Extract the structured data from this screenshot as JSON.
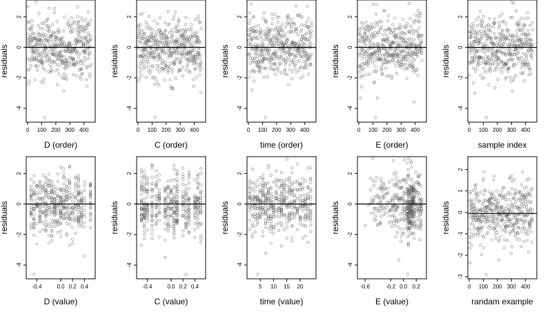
{
  "chart_data": [
    {
      "type": "scatter",
      "xlabel": "D (order)",
      "ylabel": "residuals",
      "xticks": [
        "0",
        "100",
        "200",
        "300",
        "400"
      ],
      "yticks": [
        "-4",
        "-2",
        "0",
        "2"
      ],
      "xlim": [
        -10,
        480
      ],
      "ylim": [
        -4.9,
        3.1
      ],
      "hline": 0,
      "n": 450,
      "seed": 11,
      "x_mode": "index",
      "x_values": [],
      "y_min_outlier": -4.6
    },
    {
      "type": "scatter",
      "xlabel": "C (order)",
      "ylabel": "residuals",
      "xticks": [
        "0",
        "100",
        "200",
        "300",
        "400"
      ],
      "yticks": [
        "-4",
        "-2",
        "0",
        "2"
      ],
      "xlim": [
        -10,
        480
      ],
      "ylim": [
        -4.9,
        3.1
      ],
      "hline": 0,
      "n": 450,
      "seed": 12,
      "x_mode": "index",
      "x_values": [],
      "y_min_outlier": -4.6
    },
    {
      "type": "scatter",
      "xlabel": "time (order)",
      "ylabel": "residuals",
      "xticks": [
        "0",
        "100",
        "200",
        "300",
        "400"
      ],
      "yticks": [
        "-4",
        "-2",
        "0",
        "2"
      ],
      "xlim": [
        -10,
        480
      ],
      "ylim": [
        -4.9,
        3.1
      ],
      "hline": 0,
      "n": 450,
      "seed": 13,
      "x_mode": "index",
      "x_values": [],
      "y_min_outlier": -4.6
    },
    {
      "type": "scatter",
      "xlabel": "E (order)",
      "ylabel": "residuals",
      "xticks": [
        "0",
        "100",
        "200",
        "300",
        "400"
      ],
      "yticks": [
        "-4",
        "-2",
        "0",
        "2"
      ],
      "xlim": [
        -10,
        480
      ],
      "ylim": [
        -4.9,
        3.1
      ],
      "hline": 0,
      "n": 450,
      "seed": 14,
      "x_mode": "index",
      "x_values": [],
      "y_min_outlier": -4.6
    },
    {
      "type": "scatter",
      "xlabel": "sample index",
      "ylabel": "residuals",
      "xticks": [
        "0",
        "100",
        "200",
        "300",
        "400"
      ],
      "yticks": [
        "-4",
        "-2",
        "0",
        "2"
      ],
      "xlim": [
        -10,
        480
      ],
      "ylim": [
        -4.9,
        3.1
      ],
      "hline": 0,
      "n": 450,
      "seed": 15,
      "x_mode": "index",
      "x_values": [],
      "y_min_outlier": -4.6
    },
    {
      "type": "scatter",
      "xlabel": "D (value)",
      "ylabel": "residuals",
      "xticks": [
        "-0.4",
        "0.0",
        "0.2",
        "0.4"
      ],
      "yticks": [
        "-4",
        "-2",
        "0",
        "2"
      ],
      "xlim": [
        -0.58,
        0.58
      ],
      "ylim": [
        -4.9,
        3.1
      ],
      "hline": 0,
      "n": 450,
      "seed": 21,
      "x_mode": "discrete",
      "x_values": [
        -0.5,
        -0.45,
        -0.4,
        -0.35,
        -0.3,
        -0.25,
        -0.2,
        -0.15,
        -0.1,
        -0.05,
        0.0,
        0.05,
        0.1,
        0.15,
        0.2,
        0.25,
        0.3,
        0.35,
        0.4,
        0.5
      ],
      "y_min_outlier": -4.6
    },
    {
      "type": "scatter",
      "xlabel": "C (value)",
      "ylabel": "residuals",
      "xticks": [
        "-0.4",
        "0.0",
        "0.2",
        "0.4"
      ],
      "yticks": [
        "-4",
        "-2",
        "0",
        "2"
      ],
      "xlim": [
        -0.58,
        0.58
      ],
      "ylim": [
        -4.9,
        3.1
      ],
      "hline": 0,
      "n": 450,
      "seed": 22,
      "x_mode": "discrete",
      "x_values": [
        -0.5,
        -0.45,
        -0.4,
        -0.32,
        -0.25,
        -0.2,
        -0.1,
        -0.05,
        0.0,
        0.05,
        0.1,
        0.2,
        0.25,
        0.3,
        0.4,
        0.45,
        0.5
      ],
      "y_min_outlier": -4.6
    },
    {
      "type": "scatter",
      "xlabel": "time (value)",
      "ylabel": "residuals",
      "xticks": [
        "5",
        "10",
        "15",
        "20"
      ],
      "yticks": [
        "-4",
        "-2",
        "0",
        "2"
      ],
      "xlim": [
        0,
        26
      ],
      "ylim": [
        -4.9,
        3.1
      ],
      "hline": 0,
      "n": 450,
      "seed": 23,
      "x_mode": "discrete",
      "x_values": [
        1,
        2,
        3,
        4,
        5,
        6,
        7,
        8,
        9,
        10,
        11,
        12,
        13,
        14,
        15,
        16,
        17,
        18,
        19,
        20,
        21,
        22,
        23,
        24
      ],
      "y_min_outlier": -4.6
    },
    {
      "type": "scatter",
      "xlabel": "E (value)",
      "ylabel": "residuals",
      "xticks": [
        "-0.6",
        "-0.2",
        "0.0",
        "0.2"
      ],
      "yticks": [
        "-4",
        "-2",
        "0",
        "2"
      ],
      "xlim": [
        -0.72,
        0.36
      ],
      "ylim": [
        -4.9,
        3.1
      ],
      "hline": 0,
      "n": 450,
      "seed": 24,
      "x_mode": "skewed",
      "x_values": [],
      "y_min_outlier": -4.6
    },
    {
      "type": "scatter",
      "xlabel": "randam example",
      "ylabel": "residuals",
      "xticks": [
        "0",
        "100",
        "200",
        "300",
        "400"
      ],
      "yticks": [
        "-3",
        "-2",
        "-1",
        "0",
        "1",
        "2"
      ],
      "xlim": [
        -10,
        480
      ],
      "ylim": [
        -3.1,
        2.6
      ],
      "hline": -0.05,
      "n": 450,
      "seed": 31,
      "x_mode": "index",
      "x_values": [],
      "y_min_outlier": -2.9
    }
  ],
  "colors": {
    "point": "#555555",
    "axis": "#000000",
    "hline": "#000000"
  }
}
